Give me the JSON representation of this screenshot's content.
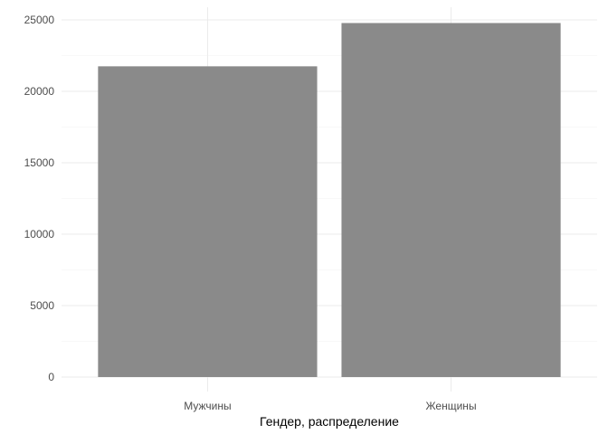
{
  "chart_data": {
    "type": "bar",
    "categories": [
      "Мужчины",
      "Женщины"
    ],
    "values": [
      21750,
      24780
    ],
    "xlabel": "Гендер, распределение",
    "ylabel": "",
    "ylim": [
      0,
      25000
    ],
    "yticks": [
      0,
      5000,
      10000,
      15000,
      20000,
      25000
    ],
    "yticks_labels": [
      "0",
      "5000",
      "10000",
      "15000",
      "20000",
      "25000"
    ],
    "grid": true,
    "bar_color": "#8a8a8a",
    "legend": "none"
  }
}
